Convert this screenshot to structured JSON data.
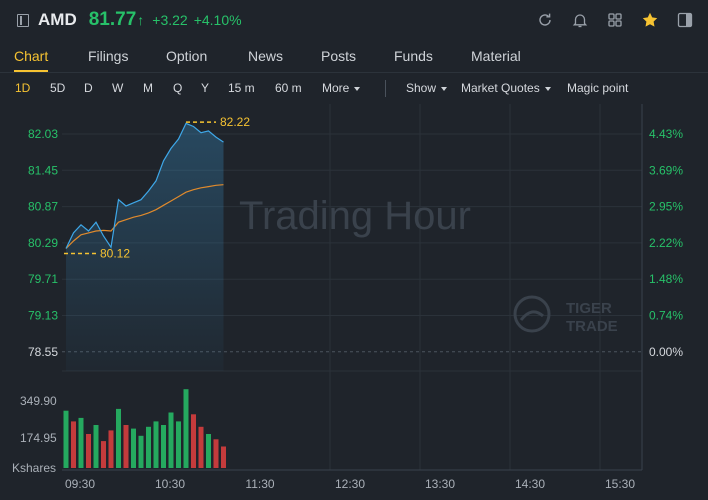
{
  "header": {
    "ticker": "AMD",
    "price": "81.77",
    "price_arrow": "↑",
    "change": "+3.22",
    "change_pct": "+4.10%",
    "icons": [
      "refresh-icon",
      "bell-icon",
      "grid-icon",
      "star-icon",
      "panel-icon"
    ],
    "accent_color": "#27c169",
    "star_color": "#f6c332"
  },
  "tabs": [
    {
      "label": "Chart",
      "active": true
    },
    {
      "label": "Filings"
    },
    {
      "label": "Option"
    },
    {
      "label": "News"
    },
    {
      "label": "Posts"
    },
    {
      "label": "Funds"
    },
    {
      "label": "Material"
    }
  ],
  "toolbar": {
    "periods": [
      "1D",
      "5D",
      "D",
      "W",
      "M",
      "Q",
      "Y",
      "15 m",
      "60 m"
    ],
    "active_period": "1D",
    "more": "More",
    "show": "Show",
    "market_quotes": "Market Quotes",
    "magic_point": "Magic point"
  },
  "chart": {
    "watermark": "Trading Hour",
    "brand_line1": "TIGER",
    "brand_line2": "TRADE",
    "volume_unit": "Kshares",
    "volume_ticks": [
      "349.90",
      "174.95"
    ],
    "x_ticks": [
      "09:30",
      "10:30",
      "11:30",
      "12:30",
      "13:30",
      "14:30",
      "15:30"
    ],
    "high_label": "82.22",
    "low_label": "80.12",
    "up_color": "#27c169",
    "down_color": "#e2403f",
    "line_color": "#3ea7e8",
    "avg_color": "#e08a2c"
  },
  "chart_data": {
    "type": "line",
    "x": [
      "09:30",
      "09:35",
      "09:40",
      "09:45",
      "09:50",
      "09:55",
      "10:00",
      "10:05",
      "10:10",
      "10:15",
      "10:20",
      "10:25",
      "10:30",
      "10:35",
      "10:40",
      "10:45",
      "10:50",
      "10:55",
      "11:00",
      "11:05",
      "11:10",
      "11:15"
    ],
    "series": [
      {
        "values": [
          80.2,
          80.45,
          80.58,
          80.48,
          80.62,
          80.4,
          80.22,
          80.98,
          80.88,
          80.93,
          80.98,
          81.12,
          81.28,
          81.6,
          81.8,
          81.95,
          82.2,
          82.15,
          82.05,
          82.08,
          81.98,
          81.9
        ]
      },
      {
        "values": [
          80.2,
          80.32,
          80.42,
          80.45,
          80.48,
          80.49,
          80.48,
          80.62,
          80.66,
          80.7,
          80.73,
          80.77,
          80.82,
          80.89,
          80.96,
          81.03,
          81.1,
          81.14,
          81.17,
          81.19,
          81.21,
          81.22
        ]
      }
    ],
    "y_ticks": [
      "82.03",
      "81.45",
      "80.87",
      "80.29",
      "79.71",
      "79.13",
      "78.55"
    ],
    "y_pct_ticks": [
      "4.43%",
      "3.69%",
      "2.95%",
      "2.22%",
      "1.48%",
      "0.74%",
      "0.00%"
    ],
    "ylim": [
      78.55,
      82.03
    ],
    "volume": [
      320,
      260,
      280,
      190,
      240,
      150,
      210,
      330,
      240,
      220,
      180,
      230,
      260,
      240,
      310,
      260,
      440,
      300,
      230,
      190,
      160,
      120
    ],
    "volume_up": [
      true,
      false,
      true,
      false,
      true,
      false,
      false,
      true,
      false,
      true,
      true,
      true,
      true,
      true,
      true,
      true,
      true,
      false,
      false,
      true,
      false,
      false
    ],
    "volume_ylim": [
      0,
      524.85
    ],
    "high": 82.22,
    "low": 80.12
  }
}
